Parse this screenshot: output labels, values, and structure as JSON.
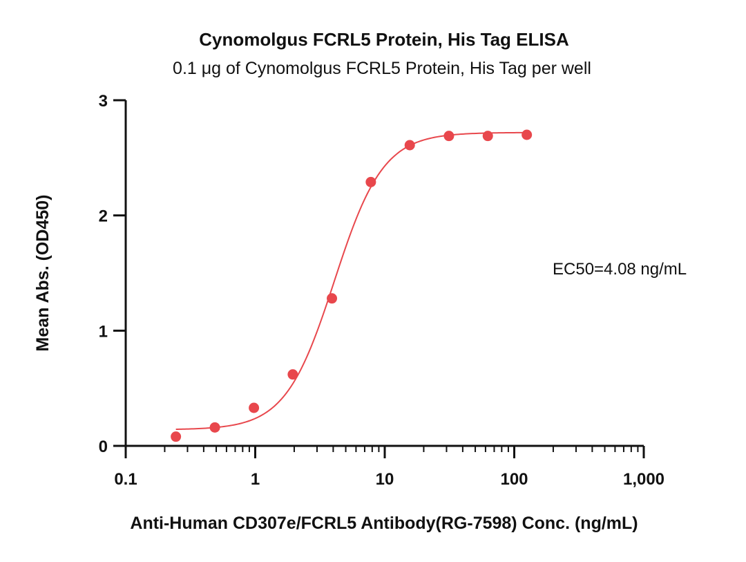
{
  "chart_data": {
    "type": "scatter",
    "title": "Cynomolgus FCRL5 Protein, His Tag ELISA",
    "subtitle": "0.1 μg of Cynomolgus FCRL5 Protein, His Tag per well",
    "xlabel": "Anti-Human CD307e/FCRL5 Antibody(RG-7598) Conc. (ng/mL)",
    "ylabel": "Mean Abs. (OD450)",
    "x_scale": "log",
    "xlim": [
      0.1,
      1000
    ],
    "ylim": [
      0,
      3
    ],
    "x_ticks": [
      0.1,
      1,
      10,
      100,
      1000
    ],
    "x_tick_labels": [
      "0.1",
      "1",
      "10",
      "100",
      "1,000"
    ],
    "y_ticks": [
      0,
      1,
      2,
      3
    ],
    "y_tick_labels": [
      "0",
      "1",
      "2",
      "3"
    ],
    "grid": false,
    "annotation": "EC50=4.08 ng/mL",
    "series": [
      {
        "color": "#e8474c",
        "x": [
          0.244,
          0.488,
          0.977,
          1.95,
          3.91,
          7.81,
          15.6,
          31.3,
          62.5,
          125
        ],
        "y": [
          0.08,
          0.16,
          0.33,
          0.62,
          1.28,
          2.29,
          2.61,
          2.69,
          2.69,
          2.7
        ]
      }
    ],
    "fit": {
      "model": "4PL",
      "bottom": 0.14,
      "top": 2.72,
      "ec50": 4.08,
      "hill": 2.3,
      "x_range": [
        0.244,
        125
      ]
    }
  }
}
